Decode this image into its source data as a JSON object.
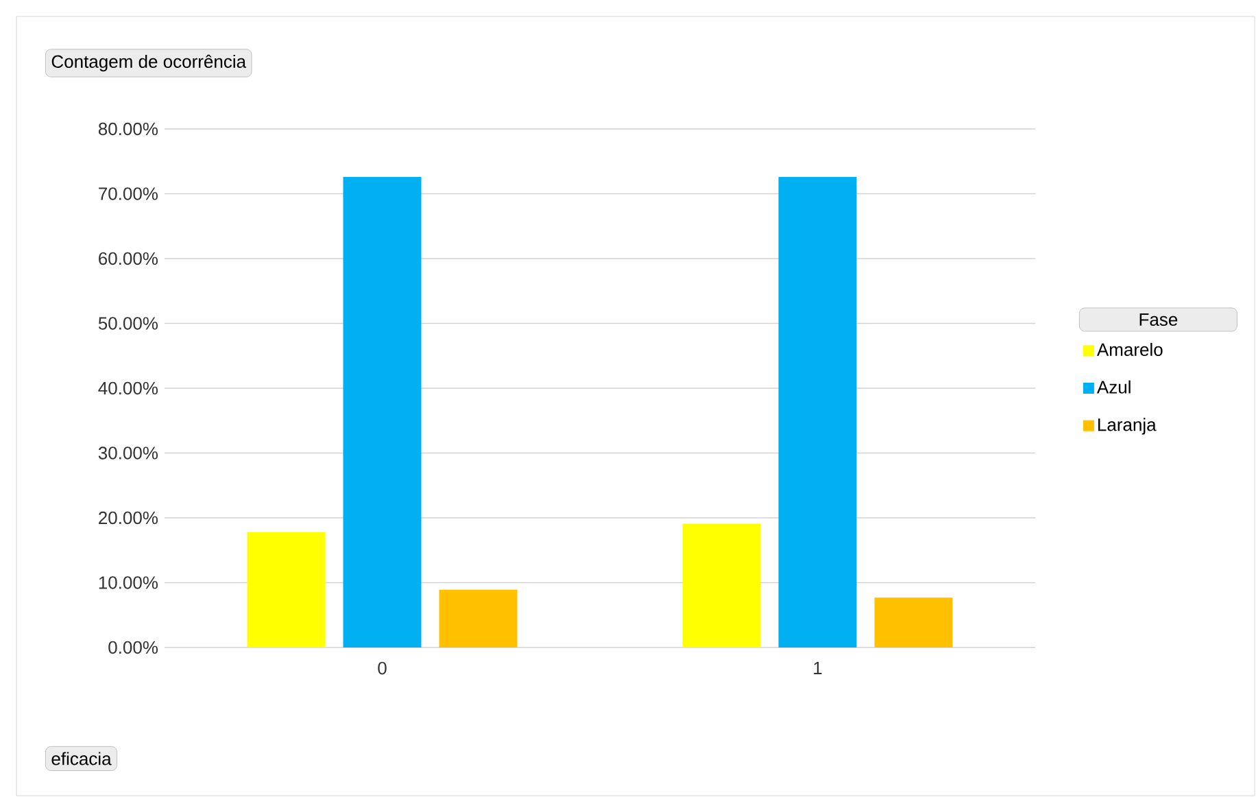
{
  "chart_data": {
    "type": "bar",
    "title": "Contagem de ocorrência",
    "xlabel": "eficacia",
    "legend_title": "Fase",
    "categories": [
      "0",
      "1"
    ],
    "series": [
      {
        "name": "Amarelo",
        "color": "#ffff00",
        "values": [
          17.8,
          19.1
        ]
      },
      {
        "name": "Azul",
        "color": "#00b0f0",
        "values": [
          72.6,
          72.6
        ]
      },
      {
        "name": "Laranja",
        "color": "#ffc000",
        "values": [
          8.9,
          7.7
        ]
      }
    ],
    "ylim": [
      0,
      80
    ],
    "yticks": [
      {
        "value": 0,
        "label": "0.00%"
      },
      {
        "value": 10,
        "label": "10.00%"
      },
      {
        "value": 20,
        "label": "20.00%"
      },
      {
        "value": 30,
        "label": "30.00%"
      },
      {
        "value": 40,
        "label": "40.00%"
      },
      {
        "value": 50,
        "label": "50.00%"
      },
      {
        "value": 60,
        "label": "60.00%"
      },
      {
        "value": 70,
        "label": "70.00%"
      },
      {
        "value": 80,
        "label": "80.00%"
      }
    ],
    "grid": "y",
    "legend": "right"
  }
}
